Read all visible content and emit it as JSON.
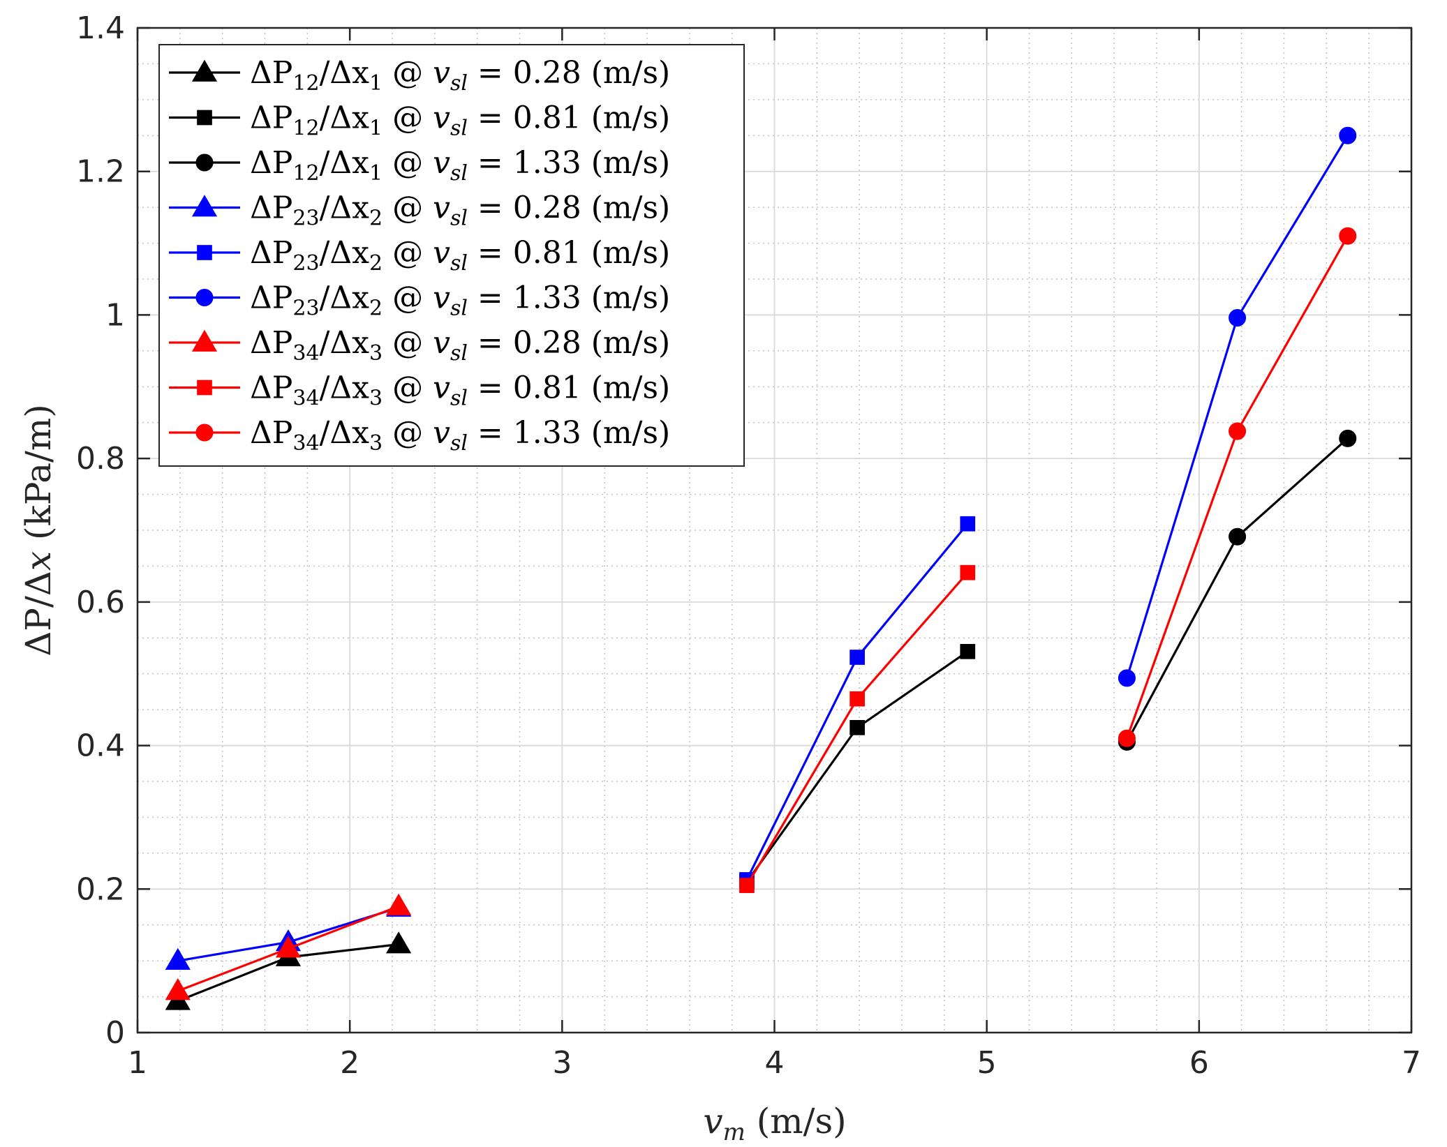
{
  "chart_data": {
    "type": "line",
    "title": "",
    "xlabel": "v_m (m/s)",
    "ylabel": "ΔP/Δx (kPa/m)",
    "xlim": [
      1,
      7
    ],
    "ylim": [
      0,
      1.4
    ],
    "x_ticks": [
      1,
      2,
      3,
      4,
      5,
      6,
      7
    ],
    "x_tick_labels": [
      "1",
      "2",
      "3",
      "4",
      "5",
      "6",
      "7"
    ],
    "y_ticks": [
      0,
      0.2,
      0.4,
      0.6,
      0.8,
      1.0,
      1.2,
      1.4
    ],
    "y_tick_labels": [
      "0",
      "0.2",
      "0.4",
      "0.6",
      "0.8",
      "1",
      "1.2",
      "1.4"
    ],
    "grid": true,
    "minor_grid": true,
    "legend_position": "top-left",
    "series": [
      {
        "name": "ΔP12/Δx1 @ vsl = 0.28 (m/s)",
        "legend": {
          "p": "12",
          "x": "1",
          "v": "0.28"
        },
        "color": "#000000",
        "marker": "triangle",
        "x": [
          1.19,
          1.71,
          2.23
        ],
        "y": [
          0.044,
          0.105,
          0.123
        ]
      },
      {
        "name": "ΔP12/Δx1 @ vsl = 0.81 (m/s)",
        "legend": {
          "p": "12",
          "x": "1",
          "v": "0.81"
        },
        "color": "#000000",
        "marker": "square",
        "x": [
          3.87,
          4.39,
          4.91
        ],
        "y": [
          0.21,
          0.425,
          0.531
        ]
      },
      {
        "name": "ΔP12/Δx1 @ vsl = 1.33 (m/s)",
        "legend": {
          "p": "12",
          "x": "1",
          "v": "1.33"
        },
        "color": "#000000",
        "marker": "circle",
        "x": [
          5.66,
          6.18,
          6.7
        ],
        "y": [
          0.405,
          0.691,
          0.828
        ]
      },
      {
        "name": "ΔP23/Δx2 @ vsl = 0.28 (m/s)",
        "legend": {
          "p": "23",
          "x": "2",
          "v": "0.28"
        },
        "color": "#0000ff",
        "marker": "triangle",
        "x": [
          1.19,
          1.71,
          2.23
        ],
        "y": [
          0.1,
          0.126,
          0.174
        ]
      },
      {
        "name": "ΔP23/Δx2 @ vsl = 0.81 (m/s)",
        "legend": {
          "p": "23",
          "x": "2",
          "v": "0.81"
        },
        "color": "#0000ff",
        "marker": "square",
        "x": [
          3.87,
          4.39,
          4.91
        ],
        "y": [
          0.213,
          0.523,
          0.709
        ]
      },
      {
        "name": "ΔP23/Δx2 @ vsl = 1.33 (m/s)",
        "legend": {
          "p": "23",
          "x": "2",
          "v": "1.33"
        },
        "color": "#0000ff",
        "marker": "circle",
        "x": [
          5.66,
          6.18,
          6.7
        ],
        "y": [
          0.494,
          0.996,
          1.25
        ]
      },
      {
        "name": "ΔP34/Δx3 @ vsl = 0.28 (m/s)",
        "legend": {
          "p": "34",
          "x": "3",
          "v": "0.28"
        },
        "color": "#ff0000",
        "marker": "triangle",
        "x": [
          1.19,
          1.71,
          2.23
        ],
        "y": [
          0.058,
          0.117,
          0.176
        ]
      },
      {
        "name": "ΔP34/Δx3 @ vsl = 0.81 (m/s)",
        "legend": {
          "p": "34",
          "x": "3",
          "v": "0.81"
        },
        "color": "#ff0000",
        "marker": "square",
        "x": [
          3.87,
          4.39,
          4.91
        ],
        "y": [
          0.205,
          0.465,
          0.641
        ]
      },
      {
        "name": "ΔP34/Δx3 @ vsl = 1.33 (m/s)",
        "legend": {
          "p": "34",
          "x": "3",
          "v": "1.33"
        },
        "color": "#ff0000",
        "marker": "circle",
        "x": [
          5.66,
          6.18,
          6.7
        ],
        "y": [
          0.41,
          0.838,
          1.11
        ]
      }
    ]
  },
  "labels": {
    "x_sym": "v",
    "x_sub": "m",
    "x_unit": " (m/s)",
    "y_prefix": "ΔP/Δ",
    "y_sym": "x",
    "y_unit": " (kPa/m)",
    "legend_delta_p": "ΔP",
    "legend_slash_delta": "/Δx",
    "legend_at": " @ ",
    "legend_v": "v",
    "legend_vsub": "sl",
    "legend_eq": " = ",
    "legend_unit": " (m/s)"
  }
}
